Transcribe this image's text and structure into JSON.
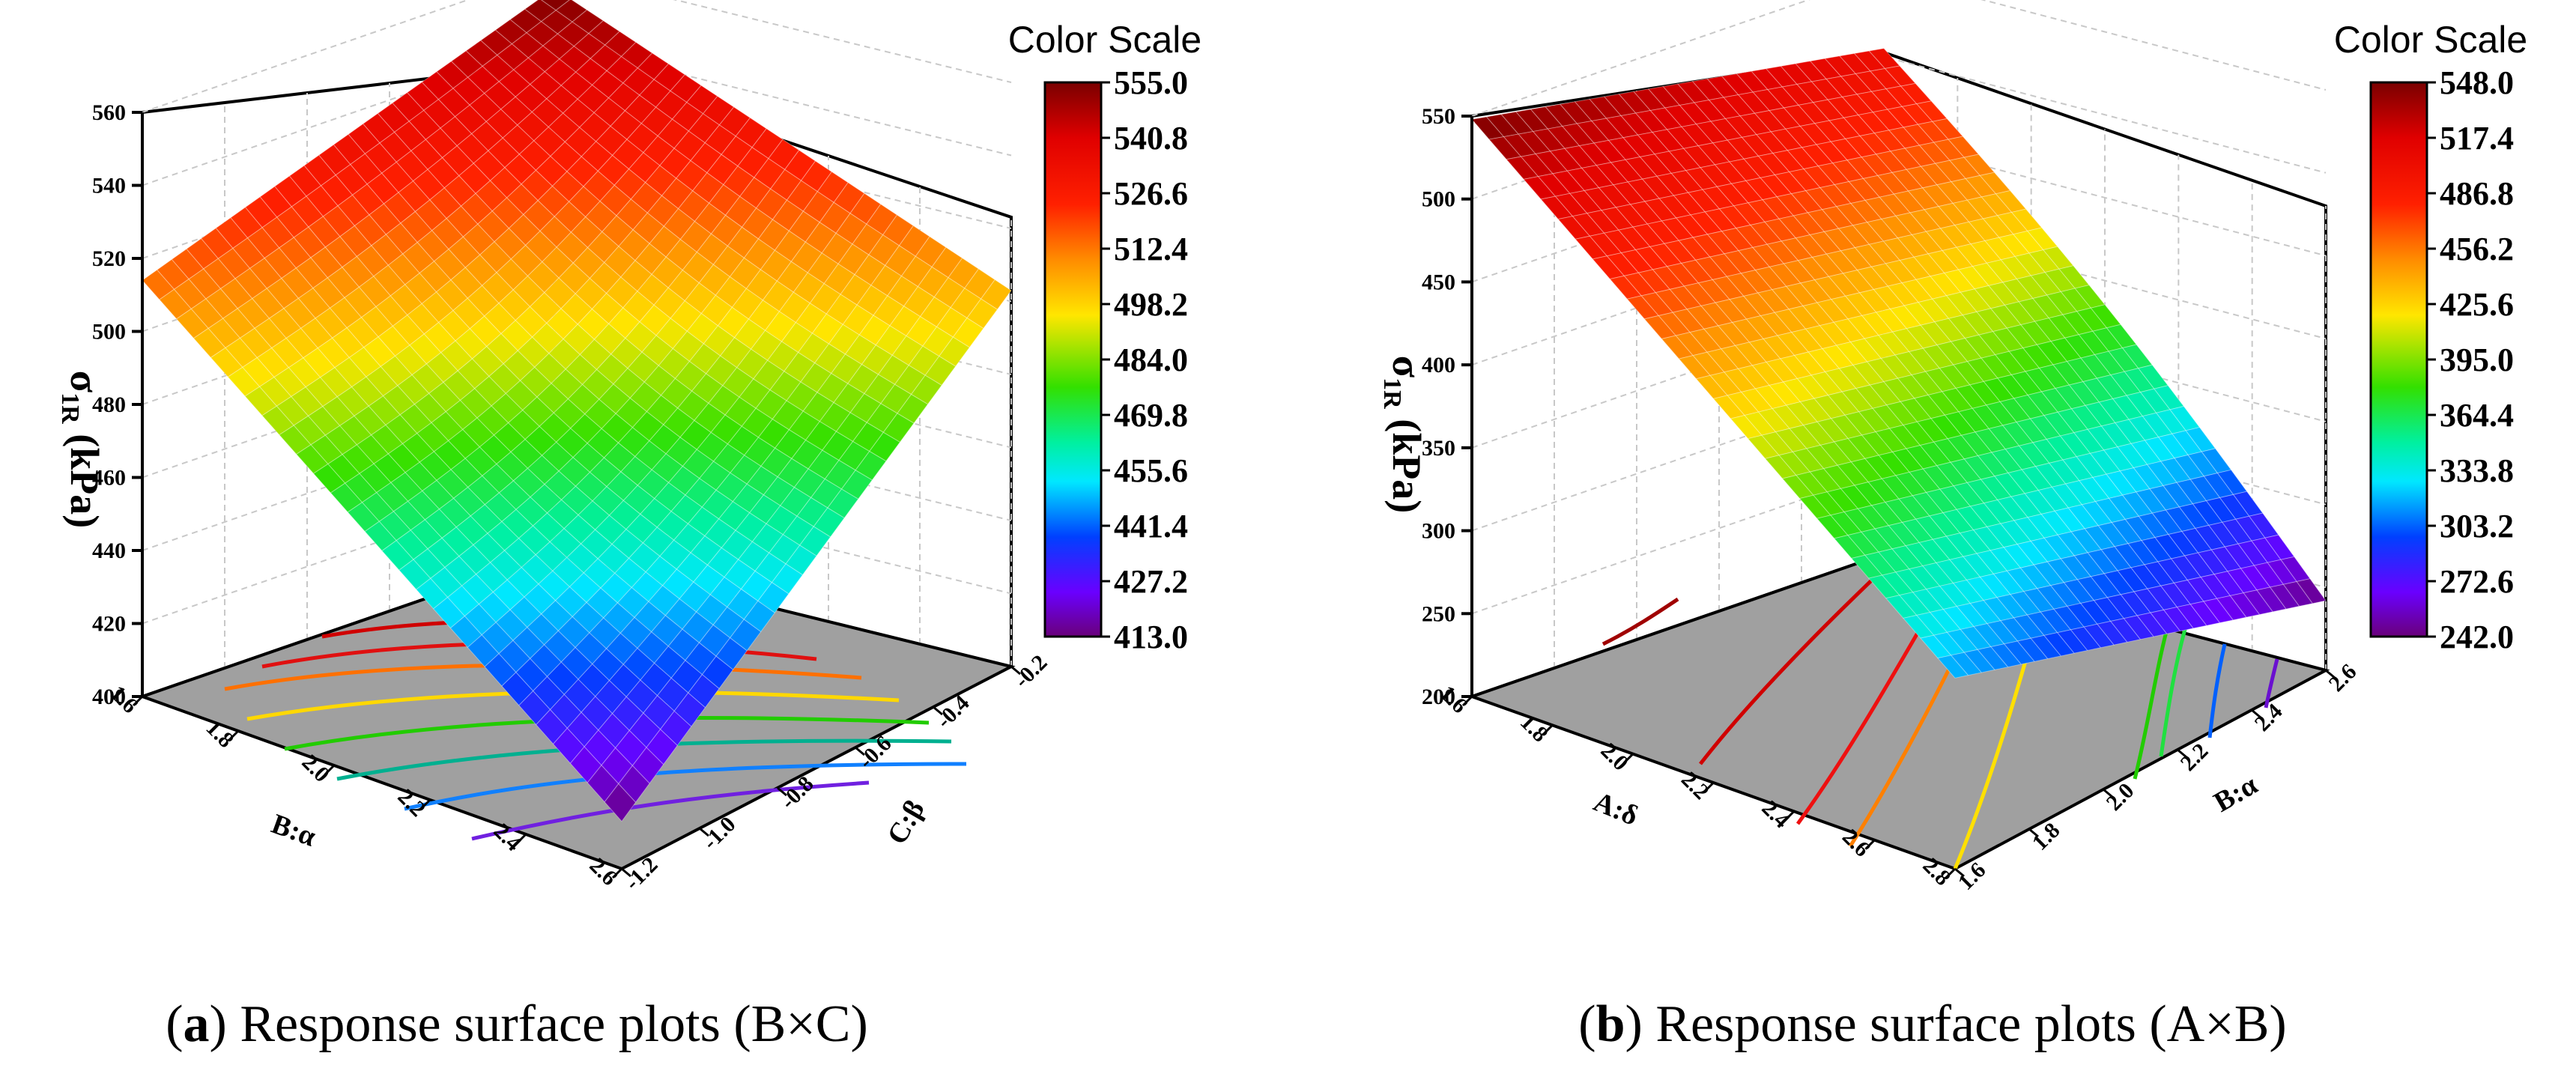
{
  "chart_data": [
    {
      "type": "surface3d",
      "panel_label": "a",
      "caption": "Response surface plots (B×C)",
      "zlabel_symbol": "σ",
      "zlabel_sub": "1R",
      "zlabel_unit": " (kPa)",
      "x_axis": {
        "label": "B:α",
        "ticks": [
          "1.6",
          "1.8",
          "2.0",
          "2.2",
          "2.4",
          "2.6"
        ],
        "range": [
          1.6,
          2.6
        ]
      },
      "y_axis": {
        "label": "C:β",
        "ticks": [
          "-0.2",
          "-0.4",
          "-0.6",
          "-0.8",
          "-1.0",
          "-1.2"
        ],
        "range": [
          -1.2,
          -0.2
        ]
      },
      "z_axis": {
        "ticks": [
          "400",
          "420",
          "440",
          "460",
          "480",
          "500",
          "520",
          "540",
          "560"
        ],
        "range": [
          400,
          560
        ]
      },
      "corner_values": {
        "bmin_cmin": 514,
        "bmin_cmax": 555,
        "bmax_cmin": 413,
        "bmax_cmax": 503
      },
      "colorbar": {
        "title": "Color Scale",
        "ticks": [
          "555.0",
          "540.8",
          "526.6",
          "512.4",
          "498.2",
          "484.0",
          "469.8",
          "455.6",
          "441.4",
          "427.2",
          "413.0"
        ],
        "range": [
          413.0,
          555.0
        ]
      }
    },
    {
      "type": "surface3d",
      "panel_label": "b",
      "caption": "Response surface plots (A×B)",
      "zlabel_symbol": "σ",
      "zlabel_sub": "1R",
      "zlabel_unit": " (kPa)",
      "x_axis": {
        "label": "A:δ",
        "ticks": [
          "1.6",
          "1.8",
          "2.0",
          "2.2",
          "2.4",
          "2.6",
          "2.8"
        ],
        "range": [
          1.6,
          2.8
        ]
      },
      "y_axis": {
        "label": "B:α",
        "ticks": [
          "1.6",
          "1.8",
          "2.0",
          "2.2",
          "2.4",
          "2.6"
        ],
        "range": [
          1.6,
          2.6
        ]
      },
      "z_axis": {
        "ticks": [
          "200",
          "250",
          "300",
          "350",
          "400",
          "450",
          "500",
          "550"
        ],
        "range": [
          200,
          550
        ]
      },
      "corner_values": {
        "amin_bmin": 548,
        "amin_bmax": 505,
        "amax_bmin": 315,
        "amax_bmax": 242
      },
      "colorbar": {
        "title": "Color Scale",
        "ticks": [
          "548.0",
          "517.4",
          "486.8",
          "456.2",
          "425.6",
          "395.0",
          "364.4",
          "333.8",
          "303.2",
          "272.6",
          "242.0"
        ],
        "range": [
          242.0,
          548.0
        ]
      }
    }
  ]
}
